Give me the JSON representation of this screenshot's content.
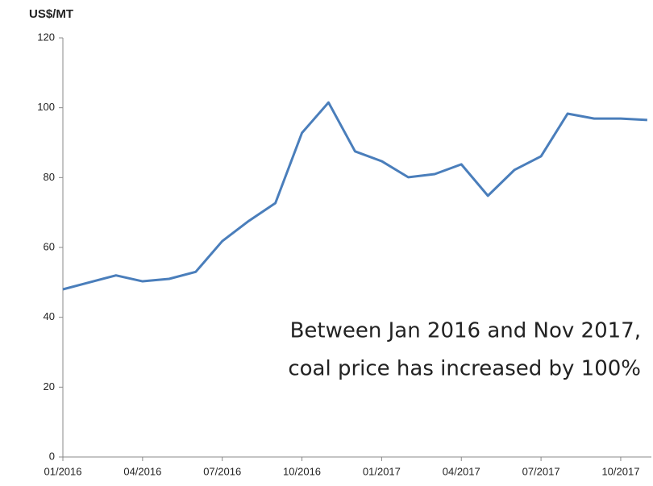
{
  "chart_data": {
    "type": "line",
    "y_label": "US$/MT",
    "annotation": [
      "Between Jan 2016 and Nov 2017,",
      "coal price has increased by 100%"
    ],
    "categories": [
      "01/2016",
      null,
      null,
      "04/2016",
      null,
      null,
      "07/2016",
      null,
      null,
      "10/2016",
      null,
      null,
      "01/2017",
      null,
      null,
      "04/2017",
      null,
      null,
      "07/2017",
      null,
      null,
      "10/2017",
      null
    ],
    "series": [
      {
        "name": "Coal price",
        "color": "#4a7ebb",
        "values": [
          48,
          50,
          52,
          50.3,
          51,
          53,
          61.8,
          67.6,
          72.7,
          92.8,
          101.5,
          87.5,
          84.7,
          80.1,
          81,
          83.8,
          74.8,
          82.2,
          86.1,
          98.3,
          96.9,
          96.9,
          96.5
        ]
      }
    ],
    "ylim": [
      0,
      120
    ],
    "yticks": [
      0,
      20,
      40,
      60,
      80,
      100,
      120
    ],
    "grid": false
  }
}
